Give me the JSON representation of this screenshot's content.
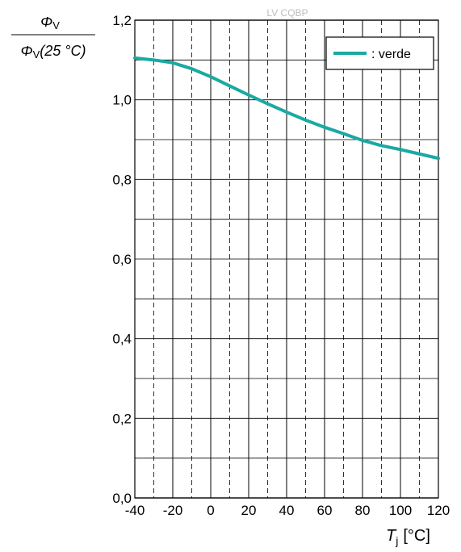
{
  "chart_data": {
    "type": "line",
    "y_label_numerator": "Φ",
    "y_label_numerator_sub": "V",
    "y_label_denominator": "Φ",
    "y_label_denominator_sub": "V",
    "y_label_denominator_suffix": "(25 °C)",
    "x_label_symbol": "T",
    "x_label_sub": "j",
    "x_label_unit": "[°C]",
    "watermark": "LV CQBP",
    "xlim": [
      -40,
      120
    ],
    "ylim": [
      0.0,
      1.2
    ],
    "x_ticks": [
      "-40",
      "-20",
      "0",
      "20",
      "40",
      "60",
      "80",
      "100",
      "120"
    ],
    "x_tick_values": [
      -40,
      -20,
      0,
      20,
      40,
      60,
      80,
      100,
      120
    ],
    "y_ticks": [
      "0,0",
      "0,2",
      "0,4",
      "0,6",
      "0,8",
      "1,0",
      "1,2"
    ],
    "y_tick_values": [
      0.0,
      0.2,
      0.4,
      0.6,
      0.8,
      1.0,
      1.2
    ],
    "grid": true,
    "legend_position": "top-right",
    "series": [
      {
        "name": ": verde",
        "color": "#1aa9a3",
        "x": [
          -40,
          -30,
          -20,
          -10,
          0,
          10,
          20,
          30,
          40,
          50,
          60,
          70,
          80,
          90,
          100,
          110,
          120
        ],
        "values": [
          1.105,
          1.1,
          1.093,
          1.078,
          1.058,
          1.035,
          1.012,
          0.99,
          0.969,
          0.949,
          0.931,
          0.915,
          0.898,
          0.885,
          0.875,
          0.864,
          0.853
        ]
      }
    ]
  }
}
